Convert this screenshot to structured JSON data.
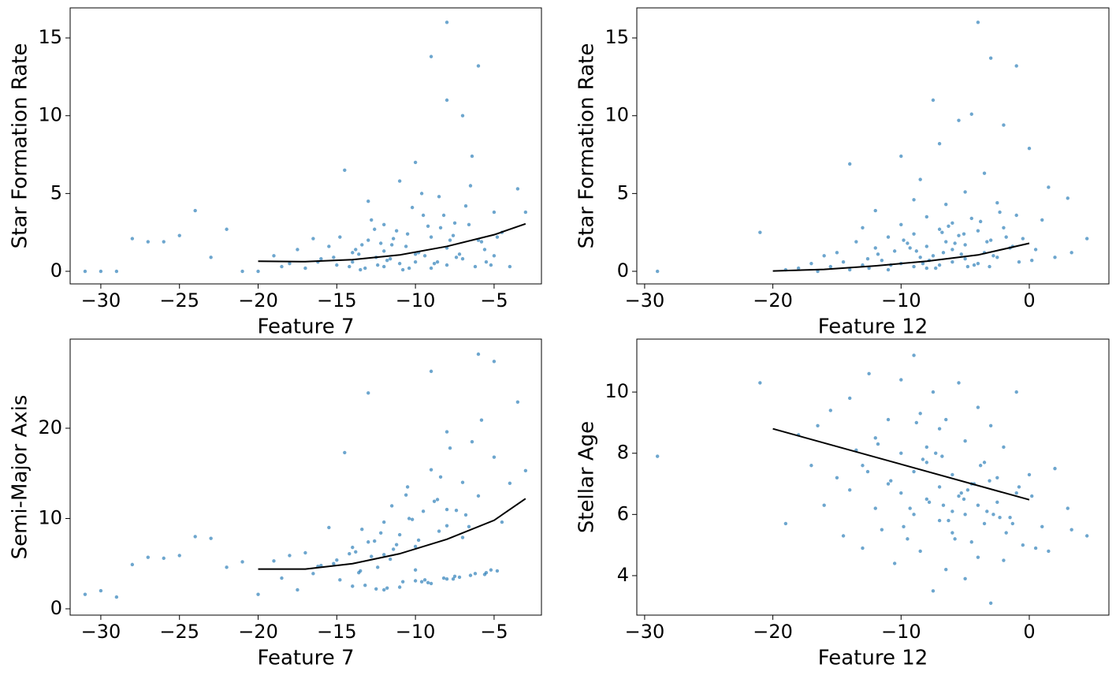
{
  "chart_data": [
    {
      "type": "scatter",
      "x_label": "Feature 7",
      "y_label": "Star Formation Rate",
      "color": "#1f77b4",
      "fit_color": "#000000",
      "xlim": [
        -31.95,
        -1.99
      ],
      "ylim": [
        -0.81,
        16.93
      ],
      "xticks": [
        {
          "value": -30,
          "label": "−30"
        },
        {
          "value": -25,
          "label": "−25"
        },
        {
          "value": -20,
          "label": "−20"
        },
        {
          "value": -15,
          "label": "−15"
        },
        {
          "value": -10,
          "label": "−10"
        },
        {
          "value": -5,
          "label": "−5"
        }
      ],
      "yticks": [
        0,
        5,
        10,
        15
      ],
      "x": [
        -31,
        -30,
        -29,
        -28,
        -27,
        -26,
        -25,
        -24,
        -23,
        -22,
        -21,
        -20,
        -19,
        -18.5,
        -18,
        -17.5,
        -17,
        -16.5,
        -16,
        -15.5,
        -15,
        -14.5,
        -14,
        -14,
        -13.5,
        -13,
        -13,
        -12.5,
        -12,
        -12,
        -11.5,
        -11,
        -11,
        -10.5,
        -10,
        -10,
        -9.5,
        -9,
        -9,
        -9,
        -8.5,
        -8,
        -8,
        -8,
        -7.5,
        -7,
        -7,
        -6.5,
        -6,
        -6,
        -5.5,
        -5,
        -5,
        -4.5,
        -4,
        -3.5,
        -3,
        -12,
        -10,
        -8,
        -15.2,
        -14.8,
        -13.8,
        -13.2,
        -12.8,
        -12.2,
        -11.8,
        -11.2,
        -10.8,
        -10.2,
        -9.8,
        -9.2,
        -8.8,
        -8.2,
        -7.8,
        -7.2,
        -6.8,
        -6.2,
        -5.8,
        -5.2,
        -14.2,
        -13.6,
        -12.6,
        -11.6,
        -10.6,
        -9.6,
        -8.6,
        -7.6,
        -6.6,
        -5.6,
        -13.4,
        -12.4,
        -11.4,
        -10.4,
        -9.4,
        -8.4,
        -7.4,
        -6.4,
        -16.2,
        -4.8
      ],
      "values": [
        0,
        0,
        0,
        2.1,
        1.9,
        1.9,
        2.3,
        3.9,
        0.9,
        2.7,
        0,
        0,
        1.0,
        0.3,
        0.5,
        1.4,
        0.2,
        2.1,
        0.8,
        1.6,
        0.4,
        6.5,
        0.6,
        1.2,
        0.1,
        2.0,
        4.5,
        0.9,
        3.0,
        0.3,
        1.7,
        5.8,
        0.5,
        2.4,
        7.0,
        1.1,
        3.6,
        13.8,
        0.2,
        2.2,
        4.8,
        16.0,
        1.5,
        0.4,
        3.1,
        10.0,
        0.8,
        5.5,
        13.2,
        2.0,
        0.6,
        3.8,
        1.0,
        2.5,
        0.3,
        5.3,
        3.8,
        1.3,
        0.6,
        11.0,
        0.9,
        2.2,
        1.4,
        0.2,
        3.3,
        1.8,
        0.7,
        2.6,
        0.1,
        4.1,
        1.2,
        2.9,
        0.5,
        3.6,
        2.0,
        1.1,
        4.2,
        0.3,
        1.9,
        0.4,
        0.3,
        1.1,
        2.7,
        0.8,
        1.6,
        5.0,
        0.6,
        2.3,
        3.0,
        1.4,
        1.7,
        0.4,
        2.1,
        0.2,
        1.0,
        2.8,
        0.9,
        7.4,
        0.6,
        2.2
      ],
      "fit_x": [
        -20,
        -17,
        -14,
        -11,
        -8,
        -5,
        -3
      ],
      "fit_values": [
        0.65,
        0.62,
        0.75,
        1.05,
        1.6,
        2.35,
        3.05
      ]
    },
    {
      "type": "scatter",
      "x_label": "Feature 12",
      "y_label": "Star Formation Rate",
      "color": "#1f77b4",
      "fit_color": "#000000",
      "xlim": [
        -30.61,
        6.21
      ],
      "ylim": [
        -0.81,
        16.93
      ],
      "xticks": [
        {
          "value": -30,
          "label": "−30"
        },
        {
          "value": -20,
          "label": "−20"
        },
        {
          "value": -10,
          "label": "−10"
        },
        0
      ],
      "yticks": [
        0,
        5,
        10,
        15
      ],
      "x": [
        -29,
        -21,
        -19,
        -18,
        -17,
        -16.5,
        -16,
        -15.5,
        -15,
        -14.5,
        -14,
        -14,
        -13.5,
        -13,
        -13,
        -12.5,
        -12,
        -12,
        -11.5,
        -11,
        -11,
        -10.5,
        -10,
        -10,
        -10,
        -9.5,
        -9,
        -9,
        -9,
        -8.5,
        -8.5,
        -8,
        -8,
        -8,
        -7.5,
        -7.5,
        -7,
        -7,
        -7,
        -6.5,
        -6.5,
        -6,
        -6,
        -6,
        -5.5,
        -5.5,
        -5,
        -5,
        -5,
        -4.5,
        -4.5,
        -4,
        -4,
        -4,
        -3.5,
        -3.5,
        -3,
        -3,
        -2.5,
        -2.5,
        -2,
        -2,
        -1.5,
        -1,
        -1,
        -0.5,
        0,
        0.5,
        1,
        1.5,
        2,
        3,
        3.3,
        4.5,
        -11.8,
        -10.8,
        -9.8,
        -8.8,
        -7.8,
        -6.8,
        -5.8,
        -4.8,
        -3.8,
        -2.8,
        -1.8,
        -0.8,
        -12.6,
        -9.3,
        -7.3,
        -6.3,
        -5.3,
        -4.3,
        -3.3,
        -2.3,
        -8.3,
        -6.7,
        -5.1,
        -3.1,
        -1.3,
        0.2
      ],
      "values": [
        0,
        2.5,
        0.1,
        0.2,
        0.5,
        0.0,
        1.0,
        0.3,
        1.2,
        0.6,
        6.9,
        0.1,
        1.9,
        0.4,
        2.8,
        0.2,
        1.5,
        3.9,
        0.7,
        2.2,
        0.1,
        1.3,
        7.4,
        0.5,
        3.0,
        1.8,
        0.3,
        4.6,
        2.4,
        0.9,
        5.9,
        1.6,
        0.2,
        3.5,
        11.0,
        1.0,
        2.7,
        0.4,
        8.2,
        1.9,
        4.3,
        0.6,
        3.1,
        1.4,
        9.7,
        2.3,
        0.8,
        5.1,
        1.7,
        10.1,
        3.4,
        0.5,
        16.0,
        2.6,
        1.2,
        6.3,
        13.7,
        2.0,
        0.9,
        4.4,
        9.4,
        2.8,
        1.5,
        13.2,
        3.6,
        2.1,
        7.9,
        1.4,
        3.3,
        5.4,
        0.9,
        4.7,
        1.2,
        2.1,
        1.1,
        0.4,
        2.0,
        1.3,
        0.7,
        2.5,
        1.8,
        0.3,
        3.2,
        1.0,
        2.2,
        0.6,
        0.8,
        1.5,
        0.2,
        2.9,
        1.1,
        0.4,
        1.9,
        3.8,
        0.5,
        1.2,
        2.4,
        0.3,
        1.6,
        0.7
      ],
      "fit_x": [
        -20,
        -16,
        -12,
        -8,
        -4,
        0
      ],
      "fit_values": [
        0.02,
        0.12,
        0.35,
        0.65,
        1.05,
        1.8
      ]
    },
    {
      "type": "scatter",
      "x_label": "Feature 7",
      "y_label": "Semi-Major Axis",
      "color": "#1f77b4",
      "fit_color": "#000000",
      "xlim": [
        -31.95,
        -1.99
      ],
      "ylim": [
        -0.7,
        29.87
      ],
      "xticks": [
        {
          "value": -30,
          "label": "−30"
        },
        {
          "value": -25,
          "label": "−25"
        },
        {
          "value": -20,
          "label": "−20"
        },
        {
          "value": -15,
          "label": "−15"
        },
        {
          "value": -10,
          "label": "−10"
        },
        {
          "value": -5,
          "label": "−5"
        }
      ],
      "yticks": [
        0,
        10,
        20
      ],
      "x": [
        -31,
        -30,
        -29,
        -28,
        -27,
        -26,
        -25,
        -24,
        -23,
        -22,
        -21,
        -20,
        -19,
        -18.5,
        -18,
        -17.5,
        -17,
        -16.5,
        -16,
        -15.5,
        -15,
        -14.5,
        -14,
        -14,
        -13.5,
        -13,
        -13,
        -12.5,
        -12,
        -12,
        -11.5,
        -11,
        -11,
        -10.5,
        -10,
        -10,
        -9.5,
        -9,
        -9,
        -9,
        -8.5,
        -8,
        -8,
        -8,
        -7.5,
        -7,
        -7,
        -6.5,
        -6,
        -6,
        -5.5,
        -5,
        -5,
        -4.5,
        -4,
        -3.5,
        -3,
        -12,
        -10,
        -8,
        -15.2,
        -14.8,
        -13.8,
        -13.2,
        -12.8,
        -12.2,
        -11.8,
        -11.2,
        -10.8,
        -10.2,
        -9.8,
        -9.2,
        -8.8,
        -8.2,
        -7.8,
        -7.2,
        -6.8,
        -6.2,
        -5.8,
        -5.2,
        -14.2,
        -13.6,
        -12.6,
        -11.6,
        -10.6,
        -9.6,
        -8.6,
        -7.6,
        -6.6,
        -5.6,
        -13.4,
        -12.4,
        -11.4,
        -10.4,
        -9.4,
        -8.4,
        -7.4,
        -6.4,
        -16.2,
        -4.8
      ],
      "values": [
        1.6,
        2.0,
        1.3,
        4.9,
        5.7,
        5.6,
        5.9,
        8.0,
        7.8,
        4.6,
        5.2,
        1.6,
        5.3,
        3.4,
        5.9,
        2.1,
        6.2,
        3.9,
        4.8,
        9.0,
        5.4,
        17.3,
        6.8,
        2.5,
        4.2,
        23.9,
        7.4,
        2.2,
        9.6,
        6.0,
        11.4,
        2.4,
        8.2,
        13.5,
        3.1,
        6.9,
        10.8,
        26.3,
        2.8,
        15.4,
        8.6,
        3.3,
        19.6,
        11.0,
        3.6,
        14.0,
        7.9,
        3.7,
        28.2,
        12.5,
        4.0,
        27.4,
        16.8,
        9.6,
        13.9,
        22.9,
        15.3,
        2.1,
        4.3,
        9.2,
        5.0,
        3.2,
        6.3,
        2.6,
        5.8,
        8.4,
        2.3,
        7.1,
        3.0,
        9.9,
        7.6,
        2.9,
        11.9,
        3.4,
        17.8,
        3.5,
        10.4,
        3.9,
        20.9,
        4.3,
        6.1,
        4.0,
        7.5,
        5.5,
        12.6,
        3.0,
        12.1,
        3.3,
        9.1,
        3.8,
        8.8,
        4.6,
        6.6,
        10.0,
        3.2,
        14.6,
        10.9,
        18.5,
        4.7,
        4.2
      ],
      "fit_x": [
        -20,
        -17,
        -14,
        -11,
        -8,
        -5,
        -3
      ],
      "fit_values": [
        4.4,
        4.4,
        5.0,
        6.1,
        7.7,
        9.8,
        12.2
      ]
    },
    {
      "type": "scatter",
      "x_label": "Feature 12",
      "y_label": "Stellar Age",
      "color": "#1f77b4",
      "fit_color": "#000000",
      "xlim": [
        -30.61,
        6.21
      ],
      "ylim": [
        2.71,
        11.73
      ],
      "xticks": [
        {
          "value": -30,
          "label": "−30"
        },
        {
          "value": -20,
          "label": "−20"
        },
        {
          "value": -10,
          "label": "−10"
        },
        0
      ],
      "yticks": [
        4,
        6,
        8,
        10
      ],
      "x": [
        -29,
        -21,
        -19,
        -18,
        -17,
        -16.5,
        -16,
        -15.5,
        -15,
        -14.5,
        -14,
        -14,
        -13.5,
        -13,
        -13,
        -12.5,
        -12,
        -12,
        -11.5,
        -11,
        -11,
        -10.5,
        -10,
        -10,
        -10,
        -9.5,
        -9,
        -9,
        -9,
        -8.5,
        -8.5,
        -8,
        -8,
        -8,
        -7.5,
        -7.5,
        -7,
        -7,
        -7,
        -6.5,
        -6.5,
        -6,
        -6,
        -6,
        -5.5,
        -5.5,
        -5,
        -5,
        -5,
        -4.5,
        -4.5,
        -4,
        -4,
        -4,
        -3.5,
        -3.5,
        -3,
        -3,
        -2.5,
        -2.5,
        -2,
        -2,
        -1.5,
        -1,
        -1,
        -0.5,
        0,
        0.5,
        1,
        1.5,
        2,
        3,
        3.3,
        4.5,
        -11.8,
        -10.8,
        -9.8,
        -8.8,
        -7.8,
        -6.8,
        -5.8,
        -4.8,
        -3.8,
        -2.8,
        -1.8,
        -0.8,
        -12.6,
        -9.3,
        -7.3,
        -6.3,
        -5.3,
        -4.3,
        -3.3,
        -2.3,
        -8.3,
        -6.7,
        -5.1,
        -3.1,
        -1.3,
        0.2
      ],
      "values": [
        7.9,
        10.3,
        5.7,
        8.6,
        7.6,
        8.9,
        6.3,
        9.4,
        7.2,
        5.3,
        9.8,
        6.8,
        8.1,
        4.9,
        7.6,
        10.6,
        6.2,
        8.5,
        5.5,
        9.1,
        7.0,
        4.4,
        10.4,
        6.7,
        8.0,
        5.2,
        11.2,
        7.4,
        6.0,
        9.3,
        4.8,
        8.2,
        6.5,
        7.7,
        3.5,
        10.0,
        5.8,
        8.8,
        6.9,
        4.2,
        9.1,
        6.1,
        7.3,
        5.4,
        10.3,
        6.6,
        3.9,
        8.4,
        6.0,
        7.0,
        5.1,
        9.5,
        6.3,
        4.6,
        7.7,
        5.7,
        8.9,
        3.1,
        6.4,
        7.2,
        4.5,
        8.2,
        5.9,
        10.0,
        6.7,
        5.0,
        7.3,
        4.9,
        5.6,
        4.8,
        7.5,
        6.2,
        5.5,
        5.3,
        8.3,
        7.1,
        5.6,
        9.0,
        6.4,
        7.9,
        5.2,
        6.8,
        7.6,
        6.0,
        5.4,
        6.9,
        7.4,
        6.2,
        8.0,
        5.8,
        6.7,
        7.0,
        6.1,
        5.9,
        7.8,
        6.3,
        6.5,
        7.1,
        5.7,
        6.6
      ],
      "fit_x": [
        -20,
        0
      ],
      "fit_values": [
        8.8,
        6.48
      ]
    }
  ]
}
